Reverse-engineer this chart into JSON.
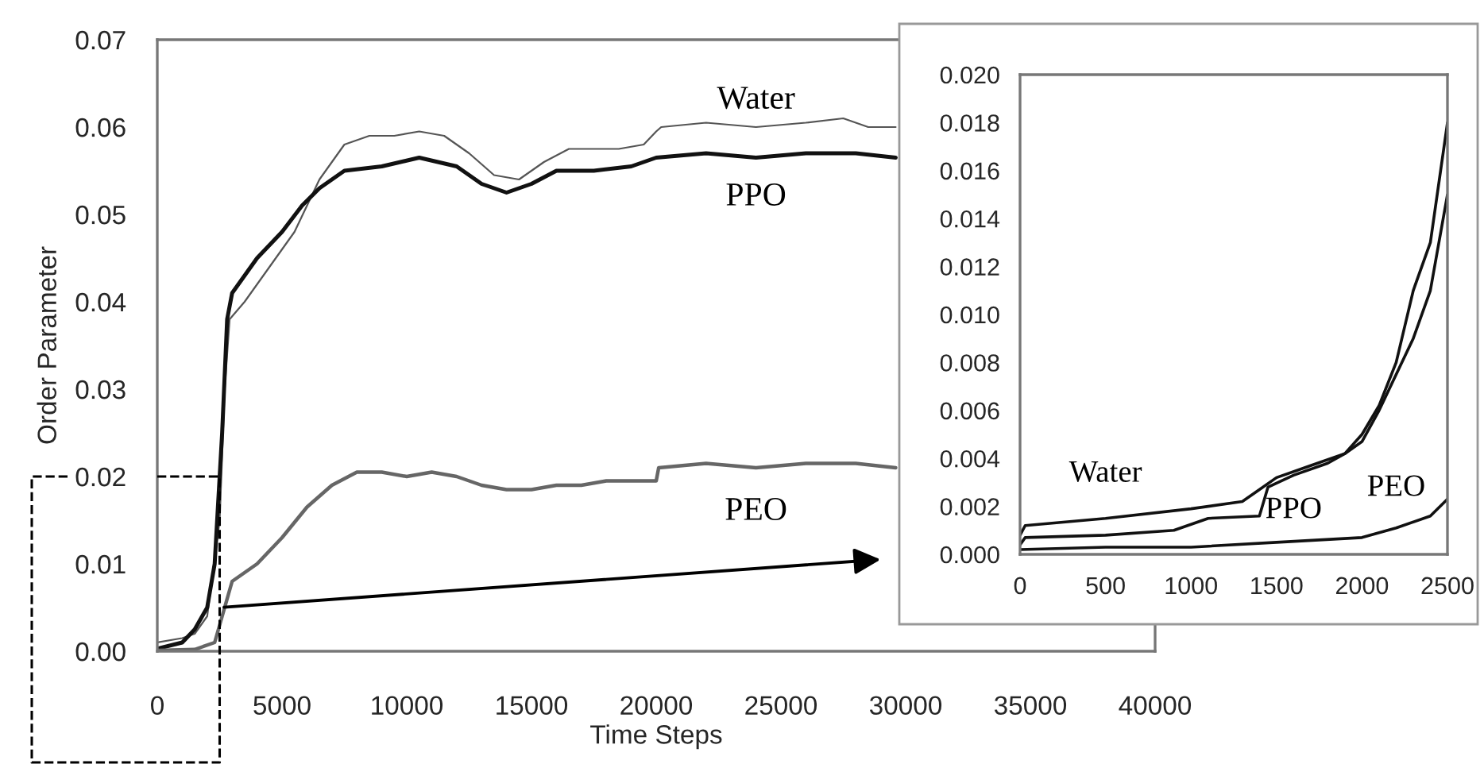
{
  "chart_data": [
    {
      "type": "line",
      "xlabel": "Time Steps",
      "ylabel": "Order Parameter",
      "xlim": [
        0,
        40000
      ],
      "ylim": [
        0,
        0.07
      ],
      "xticks": [
        0,
        5000,
        10000,
        15000,
        20000,
        25000,
        30000,
        35000,
        40000
      ],
      "yticks": [
        {
          "value": 0,
          "label": "0.00"
        },
        {
          "value": 0.01,
          "label": "0.01"
        },
        {
          "value": 0.02,
          "label": "0.02"
        },
        {
          "value": 0.03,
          "label": "0.03"
        },
        {
          "value": 0.04,
          "label": "0.04"
        },
        {
          "value": 0.05,
          "label": "0.05"
        },
        {
          "value": 0.06,
          "label": "0.06"
        },
        {
          "value": 0.07,
          "label": "0.07"
        }
      ],
      "grid": false,
      "legend": false,
      "series": [
        {
          "name": "Water",
          "color": "#555555",
          "x": [
            0,
            1000,
            1500,
            2000,
            2500,
            2700,
            2900,
            3500,
            4500,
            5500,
            6500,
            7500,
            8500,
            9500,
            10500,
            11500,
            12500,
            13500,
            14500,
            15500,
            16500,
            17500,
            18500,
            19500,
            20000,
            20200,
            22000,
            24000,
            26000,
            27500,
            28500,
            29600
          ],
          "values": [
            0.001,
            0.0015,
            0.002,
            0.004,
            0.015,
            0.03,
            0.038,
            0.04,
            0.044,
            0.048,
            0.054,
            0.058,
            0.059,
            0.059,
            0.0595,
            0.059,
            0.057,
            0.0545,
            0.054,
            0.056,
            0.0575,
            0.0575,
            0.0575,
            0.058,
            0.0595,
            0.06,
            0.0605,
            0.06,
            0.0605,
            0.061,
            0.06,
            0.06
          ]
        },
        {
          "name": "PPO",
          "color": "#111111",
          "x": [
            0,
            1000,
            1500,
            2000,
            2300,
            2600,
            2800,
            3000,
            4000,
            5000,
            5800,
            6500,
            7500,
            9000,
            10500,
            12000,
            13000,
            14000,
            15000,
            16000,
            17500,
            19000,
            20000,
            22000,
            24000,
            26000,
            28000,
            29600
          ],
          "values": [
            0.0003,
            0.001,
            0.0025,
            0.005,
            0.01,
            0.025,
            0.038,
            0.041,
            0.045,
            0.048,
            0.051,
            0.053,
            0.055,
            0.0555,
            0.0565,
            0.0555,
            0.0535,
            0.0525,
            0.0535,
            0.055,
            0.055,
            0.0555,
            0.0565,
            0.057,
            0.0565,
            0.057,
            0.057,
            0.0565
          ]
        },
        {
          "name": "PEO",
          "color": "#666666",
          "x": [
            0,
            1500,
            2300,
            2700,
            3000,
            4000,
            5000,
            6000,
            7000,
            8000,
            9000,
            10000,
            11000,
            12000,
            13000,
            14000,
            15000,
            16000,
            17000,
            18000,
            19000,
            20000,
            20100,
            22000,
            24000,
            26000,
            28000,
            29600
          ],
          "values": [
            0.0001,
            0.0002,
            0.001,
            0.005,
            0.008,
            0.01,
            0.013,
            0.0165,
            0.019,
            0.0205,
            0.0205,
            0.02,
            0.0205,
            0.02,
            0.019,
            0.0185,
            0.0185,
            0.019,
            0.019,
            0.0195,
            0.0195,
            0.0195,
            0.021,
            0.0215,
            0.021,
            0.0215,
            0.0215,
            0.021
          ]
        }
      ]
    },
    {
      "type": "line",
      "xlim": [
        0,
        2500
      ],
      "ylim": [
        0,
        0.02
      ],
      "xticks": [
        0,
        500,
        1000,
        1500,
        2000,
        2500
      ],
      "yticks": [
        {
          "value": 0,
          "label": "0.000"
        },
        {
          "value": 0.002,
          "label": "0.002"
        },
        {
          "value": 0.004,
          "label": "0.004"
        },
        {
          "value": 0.006,
          "label": "0.006"
        },
        {
          "value": 0.008,
          "label": "0.008"
        },
        {
          "value": 0.01,
          "label": "0.010"
        },
        {
          "value": 0.012,
          "label": "0.012"
        },
        {
          "value": 0.014,
          "label": "0.014"
        },
        {
          "value": 0.016,
          "label": "0.016"
        },
        {
          "value": 0.018,
          "label": "0.018"
        },
        {
          "value": 0.02,
          "label": "0.020"
        }
      ],
      "grid": false,
      "legend": false,
      "series": [
        {
          "name": "Water",
          "color": "#111111",
          "x": [
            0,
            30,
            500,
            1000,
            1300,
            1400,
            1500,
            1700,
            1900,
            2000,
            2100,
            2200,
            2300,
            2400,
            2500
          ],
          "values": [
            0.0008,
            0.0012,
            0.0015,
            0.0019,
            0.0022,
            0.0027,
            0.0032,
            0.0037,
            0.0042,
            0.0047,
            0.006,
            0.0075,
            0.009,
            0.011,
            0.015
          ]
        },
        {
          "name": "PPO",
          "color": "#111111",
          "x": [
            0,
            30,
            500,
            900,
            1100,
            1400,
            1450,
            1600,
            1800,
            1900,
            2000,
            2100,
            2200,
            2300,
            2400,
            2500
          ],
          "values": [
            0.0004,
            0.0007,
            0.0008,
            0.001,
            0.0015,
            0.0016,
            0.0028,
            0.0033,
            0.0038,
            0.0042,
            0.005,
            0.0062,
            0.008,
            0.011,
            0.013,
            0.018
          ]
        },
        {
          "name": "PEO",
          "color": "#111111",
          "x": [
            0,
            500,
            1000,
            1500,
            2000,
            2200,
            2400,
            2500
          ],
          "values": [
            0.0002,
            0.0003,
            0.0003,
            0.0005,
            0.0007,
            0.0011,
            0.0016,
            0.0023
          ]
        }
      ]
    }
  ]
}
